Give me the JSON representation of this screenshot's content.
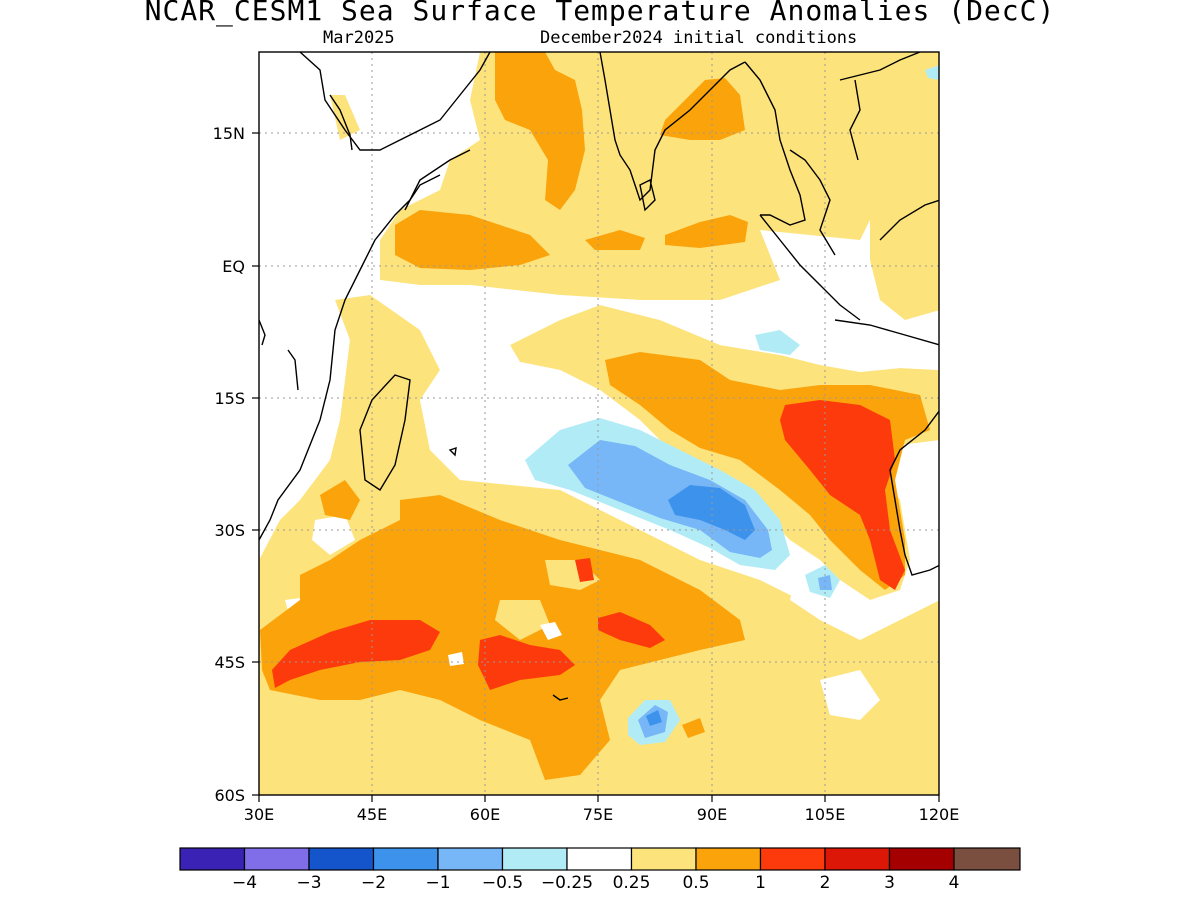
{
  "header": {
    "title": "NCAR_CESM1 Sea Surface Temperature Anomalies (DecC)",
    "valid_month": "Mar2025",
    "init": "December2024 initial conditions"
  },
  "axes": {
    "lat_labels": [
      "15N",
      "EQ",
      "15S",
      "30S",
      "45S",
      "60S"
    ],
    "lon_labels": [
      "30E",
      "45E",
      "60E",
      "75E",
      "90E",
      "105E",
      "120E"
    ]
  },
  "colors": {
    "lt_m4": "#3a22b4",
    "m4_m3": "#7f6ee8",
    "m3_m2": "#1455cc",
    "m2_m1": "#3d93ec",
    "m1_m05": "#77b6f7",
    "m05_m025": "#b1ecf6",
    "neutral": "#ffffff",
    "p025_p05": "#fde37c",
    "p05_p1": "#fba30b",
    "p1_p2": "#fd3a0c",
    "p2_p3": "#dd1707",
    "p3_p4": "#a40000",
    "gt_p4": "#7b4f40"
  },
  "colorbar": {
    "labels": [
      "−4",
      "−3",
      "−2",
      "−1",
      "−0.5",
      "−0.25",
      "0.25",
      "0.5",
      "1",
      "2",
      "3",
      "4"
    ],
    "swatches": [
      "#3a22b4",
      "#7f6ee8",
      "#1455cc",
      "#3d93ec",
      "#77b6f7",
      "#b1ecf6",
      "#ffffff",
      "#fde37c",
      "#fba30b",
      "#fd3a0c",
      "#dd1707",
      "#a40000",
      "#7b4f40"
    ]
  }
}
